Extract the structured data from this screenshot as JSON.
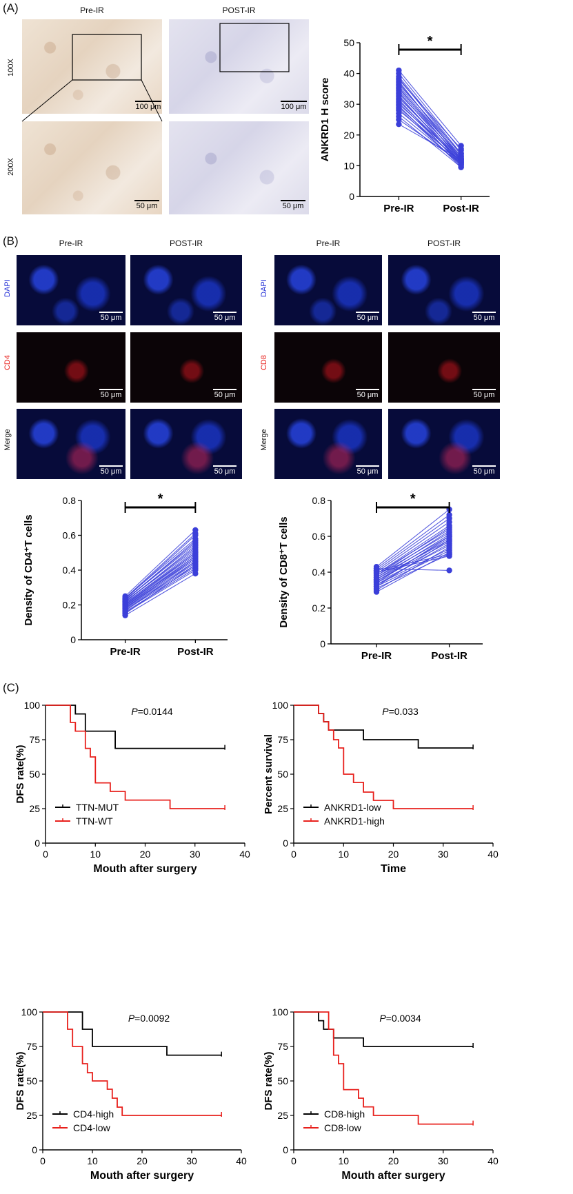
{
  "panel_labels": {
    "a": "(A)",
    "b": "(B)",
    "c": "(C)"
  },
  "panel_a": {
    "col_headers": [
      "Pre-IR",
      "POST-IR"
    ],
    "row_labels": [
      "100X",
      "200X"
    ],
    "scale_100x": "100 μm",
    "scale_200x": "50 μm"
  },
  "panel_b": {
    "col_headers": [
      "Pre-IR",
      "POST-IR",
      "Pre-IR",
      "POST-IR"
    ],
    "row_labels_left": [
      "DAPI",
      "CD4",
      "Merge"
    ],
    "row_labels_right": [
      "DAPI",
      "CD8",
      "Merge"
    ],
    "scale": "50 μm"
  },
  "colors": {
    "dots": "#3b3fd9",
    "km_black": "#000000",
    "km_red": "#e8201c",
    "dapi": "#1f2bd6",
    "cd_red": "#e8201c"
  },
  "chart_data": [
    {
      "type": "scatter",
      "id": "ankrd1",
      "ylabel": "ANKRD1 H score",
      "categories": [
        "Pre-IR",
        "Post-IR"
      ],
      "ylim": [
        0,
        50
      ],
      "yticks": [
        0,
        10,
        20,
        30,
        40,
        50
      ],
      "significance": "*",
      "pairs": [
        [
          41,
          16.5
        ],
        [
          40,
          15
        ],
        [
          39,
          14
        ],
        [
          38.5,
          13.5
        ],
        [
          38,
          15.5
        ],
        [
          37.5,
          12
        ],
        [
          37,
          13
        ],
        [
          36.5,
          14
        ],
        [
          36,
          12.5
        ],
        [
          35.5,
          11.5
        ],
        [
          35,
          13
        ],
        [
          34.5,
          12
        ],
        [
          34,
          11
        ],
        [
          33.5,
          12.5
        ],
        [
          33,
          10.5
        ],
        [
          32.5,
          11
        ],
        [
          32,
          12
        ],
        [
          31.5,
          10
        ],
        [
          31,
          11.5
        ],
        [
          30.5,
          10.5
        ],
        [
          30,
          12
        ],
        [
          29.5,
          9.5
        ],
        [
          29,
          11
        ],
        [
          28.5,
          10
        ],
        [
          28,
          11.5
        ],
        [
          27,
          10.5
        ],
        [
          26,
          9.5
        ],
        [
          25,
          11
        ],
        [
          23.5,
          12
        ]
      ]
    },
    {
      "type": "scatter",
      "id": "cd4",
      "ylabel": "Density of CD4⁺T cells",
      "categories": [
        "Pre-IR",
        "Post-IR"
      ],
      "ylim": [
        0,
        0.8
      ],
      "yticks": [
        0,
        0.2,
        0.4,
        0.6,
        0.8
      ],
      "significance": "*",
      "pairs": [
        [
          0.25,
          0.63
        ],
        [
          0.24,
          0.61
        ],
        [
          0.24,
          0.58
        ],
        [
          0.235,
          0.6
        ],
        [
          0.23,
          0.56
        ],
        [
          0.23,
          0.55
        ],
        [
          0.225,
          0.57
        ],
        [
          0.22,
          0.53
        ],
        [
          0.22,
          0.52
        ],
        [
          0.215,
          0.54
        ],
        [
          0.21,
          0.5
        ],
        [
          0.21,
          0.51
        ],
        [
          0.205,
          0.49
        ],
        [
          0.2,
          0.48
        ],
        [
          0.2,
          0.5
        ],
        [
          0.195,
          0.47
        ],
        [
          0.19,
          0.46
        ],
        [
          0.19,
          0.48
        ],
        [
          0.185,
          0.45
        ],
        [
          0.18,
          0.44
        ],
        [
          0.18,
          0.47
        ],
        [
          0.175,
          0.43
        ],
        [
          0.17,
          0.42
        ],
        [
          0.165,
          0.45
        ],
        [
          0.16,
          0.41
        ],
        [
          0.155,
          0.4
        ],
        [
          0.15,
          0.43
        ],
        [
          0.14,
          0.38
        ]
      ]
    },
    {
      "type": "scatter",
      "id": "cd8",
      "ylabel": "Density of CD8⁺T cells",
      "categories": [
        "Pre-IR",
        "Post-IR"
      ],
      "ylim": [
        0,
        0.8
      ],
      "yticks": [
        0,
        0.2,
        0.4,
        0.6,
        0.8
      ],
      "significance": "*",
      "pairs": [
        [
          0.43,
          0.75
        ],
        [
          0.42,
          0.41
        ],
        [
          0.42,
          0.72
        ],
        [
          0.41,
          0.7
        ],
        [
          0.41,
          0.5
        ],
        [
          0.4,
          0.68
        ],
        [
          0.4,
          0.49
        ],
        [
          0.39,
          0.66
        ],
        [
          0.39,
          0.64
        ],
        [
          0.38,
          0.62
        ],
        [
          0.38,
          0.65
        ],
        [
          0.37,
          0.6
        ],
        [
          0.37,
          0.63
        ],
        [
          0.36,
          0.58
        ],
        [
          0.36,
          0.61
        ],
        [
          0.35,
          0.57
        ],
        [
          0.35,
          0.59
        ],
        [
          0.34,
          0.55
        ],
        [
          0.34,
          0.6
        ],
        [
          0.33,
          0.53
        ],
        [
          0.33,
          0.56
        ],
        [
          0.32,
          0.52
        ],
        [
          0.32,
          0.58
        ],
        [
          0.31,
          0.5
        ],
        [
          0.3,
          0.54
        ],
        [
          0.29,
          0.51
        ]
      ]
    },
    {
      "type": "km",
      "id": "ttn",
      "ylabel": "DFS rate(%)",
      "xlabel": "Mouth after surgery",
      "xlim": [
        0,
        40
      ],
      "ylim": [
        0,
        100
      ],
      "xticks": [
        0,
        10,
        20,
        30,
        40
      ],
      "yticks": [
        0,
        25,
        50,
        75,
        100
      ],
      "p_prefix": "P",
      "p_value": "=0.0144",
      "legend_position": "bottom-left",
      "series": [
        {
          "name": "TTN-MUT",
          "color": "#000000",
          "steps": [
            [
              0,
              100
            ],
            [
              6,
              100
            ],
            [
              6,
              93.7
            ],
            [
              8,
              93.7
            ],
            [
              8,
              81.2
            ],
            [
              14,
              81.2
            ],
            [
              14,
              68.7
            ],
            [
              36,
              68.7
            ]
          ],
          "censors": [
            [
              36,
              68.7
            ]
          ]
        },
        {
          "name": "TTN-WT",
          "color": "#e8201c",
          "steps": [
            [
              0,
              100
            ],
            [
              5,
              100
            ],
            [
              5,
              87.5
            ],
            [
              6,
              87.5
            ],
            [
              6,
              81.2
            ],
            [
              8,
              81.2
            ],
            [
              8,
              68.7
            ],
            [
              9,
              68.7
            ],
            [
              9,
              62.5
            ],
            [
              10,
              62.5
            ],
            [
              10,
              43.7
            ],
            [
              13,
              43.7
            ],
            [
              13,
              37.5
            ],
            [
              16,
              37.5
            ],
            [
              16,
              31.2
            ],
            [
              25,
              31.2
            ],
            [
              25,
              25
            ],
            [
              36,
              25
            ]
          ],
          "censors": [
            [
              36,
              25
            ]
          ]
        }
      ]
    },
    {
      "type": "km",
      "id": "ankrd1_km",
      "ylabel": "Percent survival",
      "xlabel": "Time",
      "xlim": [
        0,
        40
      ],
      "ylim": [
        0,
        100
      ],
      "xticks": [
        0,
        10,
        20,
        30,
        40
      ],
      "yticks": [
        0,
        25,
        50,
        75,
        100
      ],
      "p_prefix": "P",
      "p_value": "=0.033",
      "legend_position": "bottom-left",
      "series": [
        {
          "name": "ANKRD1-low",
          "color": "#000000",
          "steps": [
            [
              0,
              100
            ],
            [
              5,
              100
            ],
            [
              5,
              94
            ],
            [
              6,
              94
            ],
            [
              6,
              88
            ],
            [
              7,
              88
            ],
            [
              7,
              82
            ],
            [
              14,
              82
            ],
            [
              14,
              75
            ],
            [
              25,
              75
            ],
            [
              25,
              69
            ],
            [
              36,
              69
            ]
          ],
          "censors": [
            [
              36,
              69
            ]
          ]
        },
        {
          "name": "ANKRD1-high",
          "color": "#e8201c",
          "steps": [
            [
              0,
              100
            ],
            [
              5,
              100
            ],
            [
              5,
              94
            ],
            [
              6,
              94
            ],
            [
              6,
              88
            ],
            [
              7,
              88
            ],
            [
              7,
              82
            ],
            [
              8,
              82
            ],
            [
              8,
              75
            ],
            [
              9,
              75
            ],
            [
              9,
              69
            ],
            [
              10,
              69
            ],
            [
              10,
              50
            ],
            [
              12,
              50
            ],
            [
              12,
              44
            ],
            [
              14,
              44
            ],
            [
              14,
              37
            ],
            [
              16,
              37
            ],
            [
              16,
              31
            ],
            [
              20,
              31
            ],
            [
              20,
              25
            ],
            [
              36,
              25
            ]
          ],
          "censors": [
            [
              36,
              25
            ]
          ]
        }
      ]
    },
    {
      "type": "km",
      "id": "cd4_km",
      "ylabel": "DFS rate(%)",
      "xlabel": "Mouth after surgery",
      "xlim": [
        0,
        40
      ],
      "ylim": [
        0,
        100
      ],
      "xticks": [
        0,
        10,
        20,
        30,
        40
      ],
      "yticks": [
        0,
        25,
        50,
        75,
        100
      ],
      "p_prefix": "P",
      "p_value": "=0.0092",
      "legend_position": "bottom-left",
      "series": [
        {
          "name": "CD4-high",
          "color": "#000000",
          "steps": [
            [
              0,
              100
            ],
            [
              8,
              100
            ],
            [
              8,
              87.5
            ],
            [
              10,
              87.5
            ],
            [
              10,
              75
            ],
            [
              25,
              75
            ],
            [
              25,
              68.7
            ],
            [
              36,
              68.7
            ]
          ],
          "censors": [
            [
              36,
              68.7
            ]
          ]
        },
        {
          "name": "CD4-low",
          "color": "#e8201c",
          "steps": [
            [
              0,
              100
            ],
            [
              5,
              100
            ],
            [
              5,
              87.5
            ],
            [
              6,
              87.5
            ],
            [
              6,
              75
            ],
            [
              8,
              75
            ],
            [
              8,
              62.5
            ],
            [
              9,
              62.5
            ],
            [
              9,
              56
            ],
            [
              10,
              56
            ],
            [
              10,
              50
            ],
            [
              13,
              50
            ],
            [
              13,
              44
            ],
            [
              14,
              44
            ],
            [
              14,
              37.5
            ],
            [
              15,
              37.5
            ],
            [
              15,
              31
            ],
            [
              16,
              31
            ],
            [
              16,
              25
            ],
            [
              36,
              25
            ]
          ],
          "censors": [
            [
              36,
              25
            ]
          ]
        }
      ]
    },
    {
      "type": "km",
      "id": "cd8_km",
      "ylabel": "DFS rate(%)",
      "xlabel": "Mouth after surgery",
      "xlim": [
        0,
        40
      ],
      "ylim": [
        0,
        100
      ],
      "xticks": [
        0,
        10,
        20,
        30,
        40
      ],
      "yticks": [
        0,
        25,
        50,
        75,
        100
      ],
      "p_prefix": "P",
      "p_value": "=0.0034",
      "legend_position": "bottom-left",
      "series": [
        {
          "name": "CD8-high",
          "color": "#000000",
          "steps": [
            [
              0,
              100
            ],
            [
              5,
              100
            ],
            [
              5,
              93.7
            ],
            [
              6,
              93.7
            ],
            [
              6,
              87.5
            ],
            [
              8,
              87.5
            ],
            [
              8,
              81.2
            ],
            [
              14,
              81.2
            ],
            [
              14,
              75
            ],
            [
              36,
              75
            ]
          ],
          "censors": [
            [
              36,
              75
            ]
          ]
        },
        {
          "name": "CD8-low",
          "color": "#e8201c",
          "steps": [
            [
              0,
              100
            ],
            [
              7,
              100
            ],
            [
              7,
              87.5
            ],
            [
              8,
              87.5
            ],
            [
              8,
              68.7
            ],
            [
              9,
              68.7
            ],
            [
              9,
              62.5
            ],
            [
              10,
              62.5
            ],
            [
              10,
              43.7
            ],
            [
              13,
              43.7
            ],
            [
              13,
              37.5
            ],
            [
              14,
              37.5
            ],
            [
              14,
              31.2
            ],
            [
              16,
              31.2
            ],
            [
              16,
              25
            ],
            [
              25,
              25
            ],
            [
              25,
              18.7
            ],
            [
              36,
              18.7
            ]
          ],
          "censors": [
            [
              36,
              18.7
            ]
          ]
        }
      ]
    }
  ]
}
